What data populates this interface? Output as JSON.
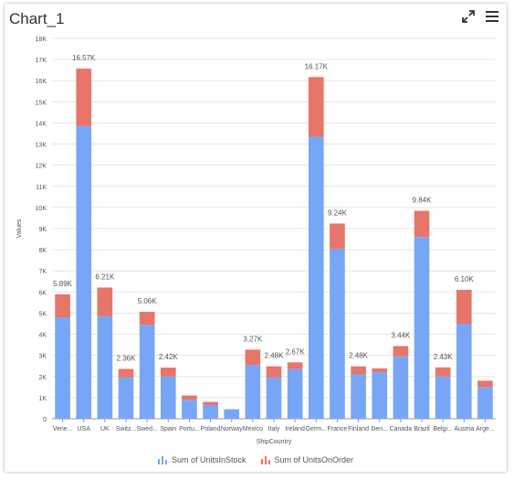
{
  "header": {
    "title": "Chart_1",
    "expand_icon": "expand-icon",
    "menu_icon": "hamburger-menu-icon"
  },
  "colors": {
    "stock": "#77a6f7",
    "order": "#e8756a",
    "grid": "#e6e6e6",
    "axis": "#9a9a9a",
    "text": "#555555"
  },
  "chart_data": {
    "type": "bar",
    "stacked": true,
    "title": "Chart_1",
    "xlabel": "ShipCountry",
    "ylabel": "Values",
    "ylim": [
      0,
      18000
    ],
    "yticks": [
      "0",
      "1K",
      "2K",
      "3K",
      "4K",
      "5K",
      "6K",
      "7K",
      "8K",
      "9K",
      "10K",
      "11K",
      "12K",
      "13K",
      "14K",
      "15K",
      "16K",
      "17K",
      "18K"
    ],
    "categories": [
      "Vene...",
      "USA",
      "UK",
      "Switz...",
      "Swed...",
      "Spain",
      "Portu...",
      "Poland",
      "Norway",
      "Mexico",
      "Italy",
      "Ireland",
      "Germ...",
      "France",
      "Finland",
      "Den...",
      "Canada",
      "Brazil",
      "Belgi...",
      "Austria",
      "Arge..."
    ],
    "series": [
      {
        "name": "Sum of UnitsInStock",
        "values": [
          4800,
          13850,
          4850,
          1950,
          4450,
          2000,
          900,
          650,
          450,
          2550,
          1950,
          2350,
          13350,
          8050,
          2100,
          2200,
          2950,
          8600,
          2000,
          4500,
          1500
        ]
      },
      {
        "name": "Sum of UnitsOnOrder",
        "values": [
          1090,
          2720,
          1360,
          410,
          610,
          420,
          200,
          150,
          0,
          720,
          530,
          320,
          2820,
          1190,
          380,
          180,
          490,
          1240,
          430,
          1600,
          300
        ]
      }
    ],
    "totals": [
      "5.89K",
      "16.57K",
      "6.21K",
      "2.36K",
      "5.06K",
      "2.42K",
      "",
      "",
      "",
      "3.27K",
      "2.48K",
      "2.67K",
      "16.17K",
      "9.24K",
      "2.48K",
      "",
      "3.44K",
      "9.84K",
      "2.43K",
      "6.10K",
      ""
    ],
    "grid": true,
    "legend_position": "bottom"
  }
}
